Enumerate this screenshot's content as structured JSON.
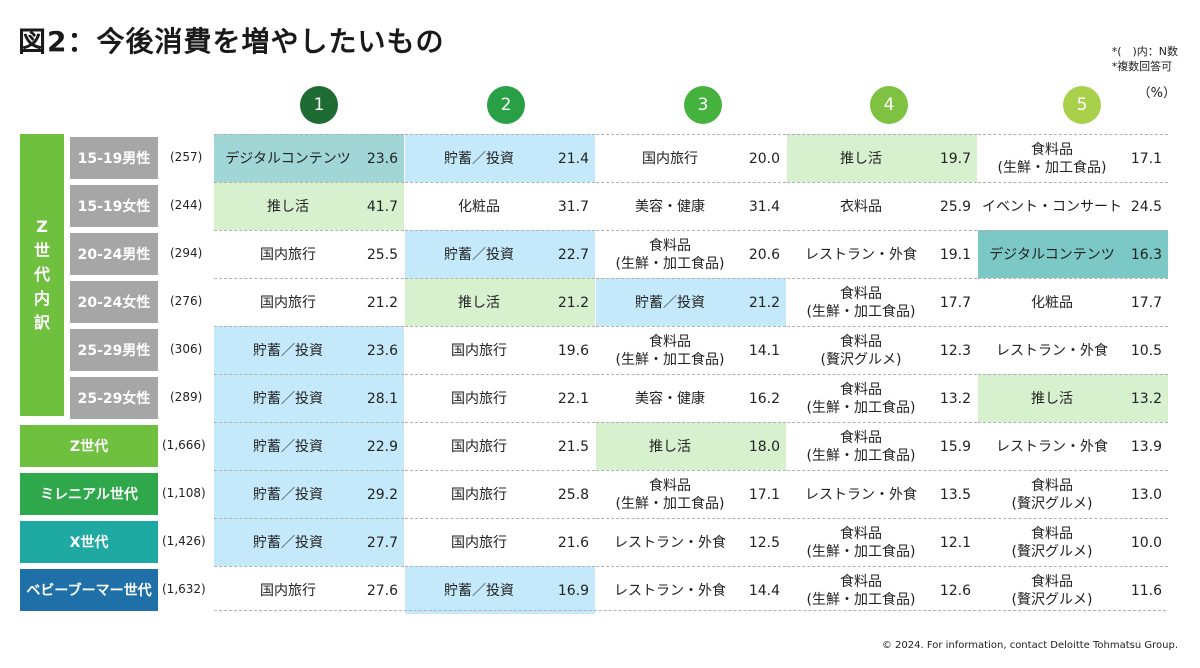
{
  "title": "図2：今後消費を増やしたいもの",
  "notes": [
    "*(　)内：N数",
    "*複数回答可"
  ],
  "unit": "（%）",
  "ranks": [
    {
      "label": "1",
      "color": "#1e6b34"
    },
    {
      "label": "2",
      "color": "#2aa046"
    },
    {
      "label": "3",
      "color": "#46b23e"
    },
    {
      "label": "4",
      "color": "#7fc242"
    },
    {
      "label": "5",
      "color": "#a9d04a"
    }
  ],
  "z_group_label": [
    "Z",
    "世",
    "代",
    "内",
    "訳"
  ],
  "rows": [
    {
      "segment": "15-19男性",
      "n": "(257)",
      "items": [
        {
          "name": "デジタルコンテンツ",
          "value": "23.6",
          "hl": "teal"
        },
        {
          "name": "貯蓄／投資",
          "value": "21.4",
          "hl": "blue"
        },
        {
          "name": "国内旅行",
          "value": "20.0",
          "hl": ""
        },
        {
          "name": "推し活",
          "value": "19.7",
          "hl": "green"
        },
        {
          "name": "食料品\n(生鮮・加工食品)",
          "value": "17.1",
          "hl": ""
        }
      ]
    },
    {
      "segment": "15-19女性",
      "n": "(244)",
      "items": [
        {
          "name": "推し活",
          "value": "41.7",
          "hl": "green"
        },
        {
          "name": "化粧品",
          "value": "31.7",
          "hl": ""
        },
        {
          "name": "美容・健康",
          "value": "31.4",
          "hl": ""
        },
        {
          "name": "衣料品",
          "value": "25.9",
          "hl": ""
        },
        {
          "name": "イベント・コンサート",
          "value": "24.5",
          "hl": ""
        }
      ]
    },
    {
      "segment": "20-24男性",
      "n": "(294)",
      "items": [
        {
          "name": "国内旅行",
          "value": "25.5",
          "hl": ""
        },
        {
          "name": "貯蓄／投資",
          "value": "22.7",
          "hl": "blue"
        },
        {
          "name": "食料品\n(生鮮・加工食品)",
          "value": "20.6",
          "hl": ""
        },
        {
          "name": "レストラン・外食",
          "value": "19.1",
          "hl": ""
        },
        {
          "name": "デジタルコンテンツ",
          "value": "16.3",
          "hl": "teal2"
        }
      ]
    },
    {
      "segment": "20-24女性",
      "n": "(276)",
      "items": [
        {
          "name": "国内旅行",
          "value": "21.2",
          "hl": ""
        },
        {
          "name": "推し活",
          "value": "21.2",
          "hl": "green"
        },
        {
          "name": "貯蓄／投資",
          "value": "21.2",
          "hl": "blue"
        },
        {
          "name": "食料品\n(生鮮・加工食品)",
          "value": "17.7",
          "hl": ""
        },
        {
          "name": "化粧品",
          "value": "17.7",
          "hl": ""
        }
      ]
    },
    {
      "segment": "25-29男性",
      "n": "(306)",
      "items": [
        {
          "name": "貯蓄／投資",
          "value": "23.6",
          "hl": "blue"
        },
        {
          "name": "国内旅行",
          "value": "19.6",
          "hl": ""
        },
        {
          "name": "食料品\n(生鮮・加工食品)",
          "value": "14.1",
          "hl": ""
        },
        {
          "name": "食料品\n(贅沢グルメ)",
          "value": "12.3",
          "hl": ""
        },
        {
          "name": "レストラン・外食",
          "value": "10.5",
          "hl": ""
        }
      ]
    },
    {
      "segment": "25-29女性",
      "n": "(289)",
      "items": [
        {
          "name": "貯蓄／投資",
          "value": "28.1",
          "hl": "blue"
        },
        {
          "name": "国内旅行",
          "value": "22.1",
          "hl": ""
        },
        {
          "name": "美容・健康",
          "value": "16.2",
          "hl": ""
        },
        {
          "name": "食料品\n(生鮮・加工食品)",
          "value": "13.2",
          "hl": ""
        },
        {
          "name": "推し活",
          "value": "13.2",
          "hl": "green"
        }
      ]
    },
    {
      "segment": "Z世代",
      "n": "(1,666)",
      "color": "#6fc03f",
      "items": [
        {
          "name": "貯蓄／投資",
          "value": "22.9",
          "hl": "blue"
        },
        {
          "name": "国内旅行",
          "value": "21.5",
          "hl": ""
        },
        {
          "name": "推し活",
          "value": "18.0",
          "hl": "green"
        },
        {
          "name": "食料品\n(生鮮・加工食品)",
          "value": "15.9",
          "hl": ""
        },
        {
          "name": "レストラン・外食",
          "value": "13.9",
          "hl": ""
        }
      ]
    },
    {
      "segment": "ミレニアル世代",
      "n": "(1,108)",
      "color": "#2ea84a",
      "items": [
        {
          "name": "貯蓄／投資",
          "value": "29.2",
          "hl": "blue"
        },
        {
          "name": "国内旅行",
          "value": "25.8",
          "hl": ""
        },
        {
          "name": "食料品\n(生鮮・加工食品)",
          "value": "17.1",
          "hl": ""
        },
        {
          "name": "レストラン・外食",
          "value": "13.5",
          "hl": ""
        },
        {
          "name": "食料品\n(贅沢グルメ)",
          "value": "13.0",
          "hl": ""
        }
      ]
    },
    {
      "segment": "X世代",
      "n": "(1,426)",
      "color": "#1fa9a3",
      "items": [
        {
          "name": "貯蓄／投資",
          "value": "27.7",
          "hl": "blue"
        },
        {
          "name": "国内旅行",
          "value": "21.6",
          "hl": ""
        },
        {
          "name": "レストラン・外食",
          "value": "12.5",
          "hl": ""
        },
        {
          "name": "食料品\n(生鮮・加工食品)",
          "value": "12.1",
          "hl": ""
        },
        {
          "name": "食料品\n(贅沢グルメ)",
          "value": "10.0",
          "hl": ""
        }
      ]
    },
    {
      "segment": "ベビーブーマー世代",
      "n": "(1,632)",
      "color": "#1f6fa8",
      "items": [
        {
          "name": "国内旅行",
          "value": "27.6",
          "hl": ""
        },
        {
          "name": "貯蓄／投資",
          "value": "16.9",
          "hl": "blue"
        },
        {
          "name": "レストラン・外食",
          "value": "14.4",
          "hl": ""
        },
        {
          "name": "食料品\n(生鮮・加工食品)",
          "value": "12.6",
          "hl": ""
        },
        {
          "name": "食料品\n(贅沢グルメ)",
          "value": "11.6",
          "hl": ""
        }
      ]
    }
  ],
  "footer": "© 2024. For information, contact Deloitte Tohmatsu Group."
}
